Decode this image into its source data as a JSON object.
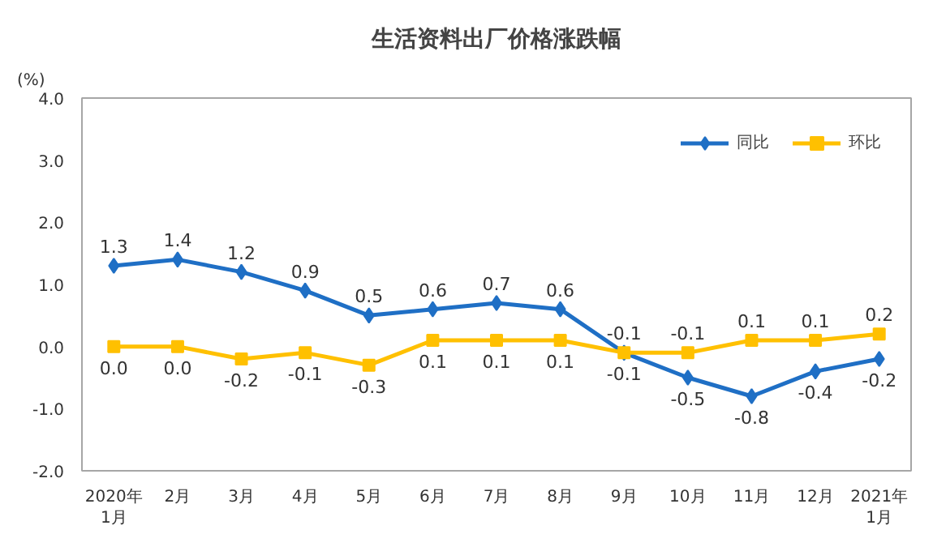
{
  "chart_data": {
    "type": "line",
    "title": "生活资料出厂价格涨跌幅",
    "ylabel": "(%)",
    "categories": [
      "2020年\n1月",
      "2月",
      "3月",
      "4月",
      "5月",
      "6月",
      "7月",
      "8月",
      "9月",
      "10月",
      "11月",
      "12月",
      "2021年\n1月"
    ],
    "series": [
      {
        "name": "同比",
        "color": "#1f6fc5",
        "marker": "diamond",
        "values": [
          1.3,
          1.4,
          1.2,
          0.9,
          0.5,
          0.6,
          0.7,
          0.6,
          -0.1,
          -0.5,
          -0.8,
          -0.4,
          -0.2
        ],
        "value_labels": [
          "1.3",
          "1.4",
          "1.2",
          "0.9",
          "0.5",
          "0.6",
          "0.7",
          "0.6",
          "-0.1",
          "-0.5",
          "-0.8",
          "-0.4",
          "-0.2"
        ]
      },
      {
        "name": "环比",
        "color": "#ffc000",
        "marker": "square",
        "values": [
          0.0,
          0.0,
          -0.2,
          -0.1,
          -0.3,
          0.1,
          0.1,
          0.1,
          -0.1,
          -0.1,
          0.1,
          0.1,
          0.2
        ],
        "value_labels": [
          "0.0",
          "0.0",
          "-0.2",
          "-0.1",
          "-0.3",
          "0.1",
          "0.1",
          "0.1",
          "-0.1",
          "-0.1",
          "0.1",
          "0.1",
          "0.2"
        ]
      }
    ],
    "ylim": [
      -2,
      4
    ],
    "yticks": [
      {
        "value": -2,
        "label": "-2.0"
      },
      {
        "value": -1,
        "label": "-1.0"
      },
      {
        "value": 0,
        "label": "0.0"
      },
      {
        "value": 1,
        "label": "1.0"
      },
      {
        "value": 2,
        "label": "2.0"
      },
      {
        "value": 3,
        "label": "3.0"
      },
      {
        "value": 4,
        "label": "4.0"
      }
    ],
    "grid": false,
    "legend": "top right",
    "line_style": "solid"
  }
}
